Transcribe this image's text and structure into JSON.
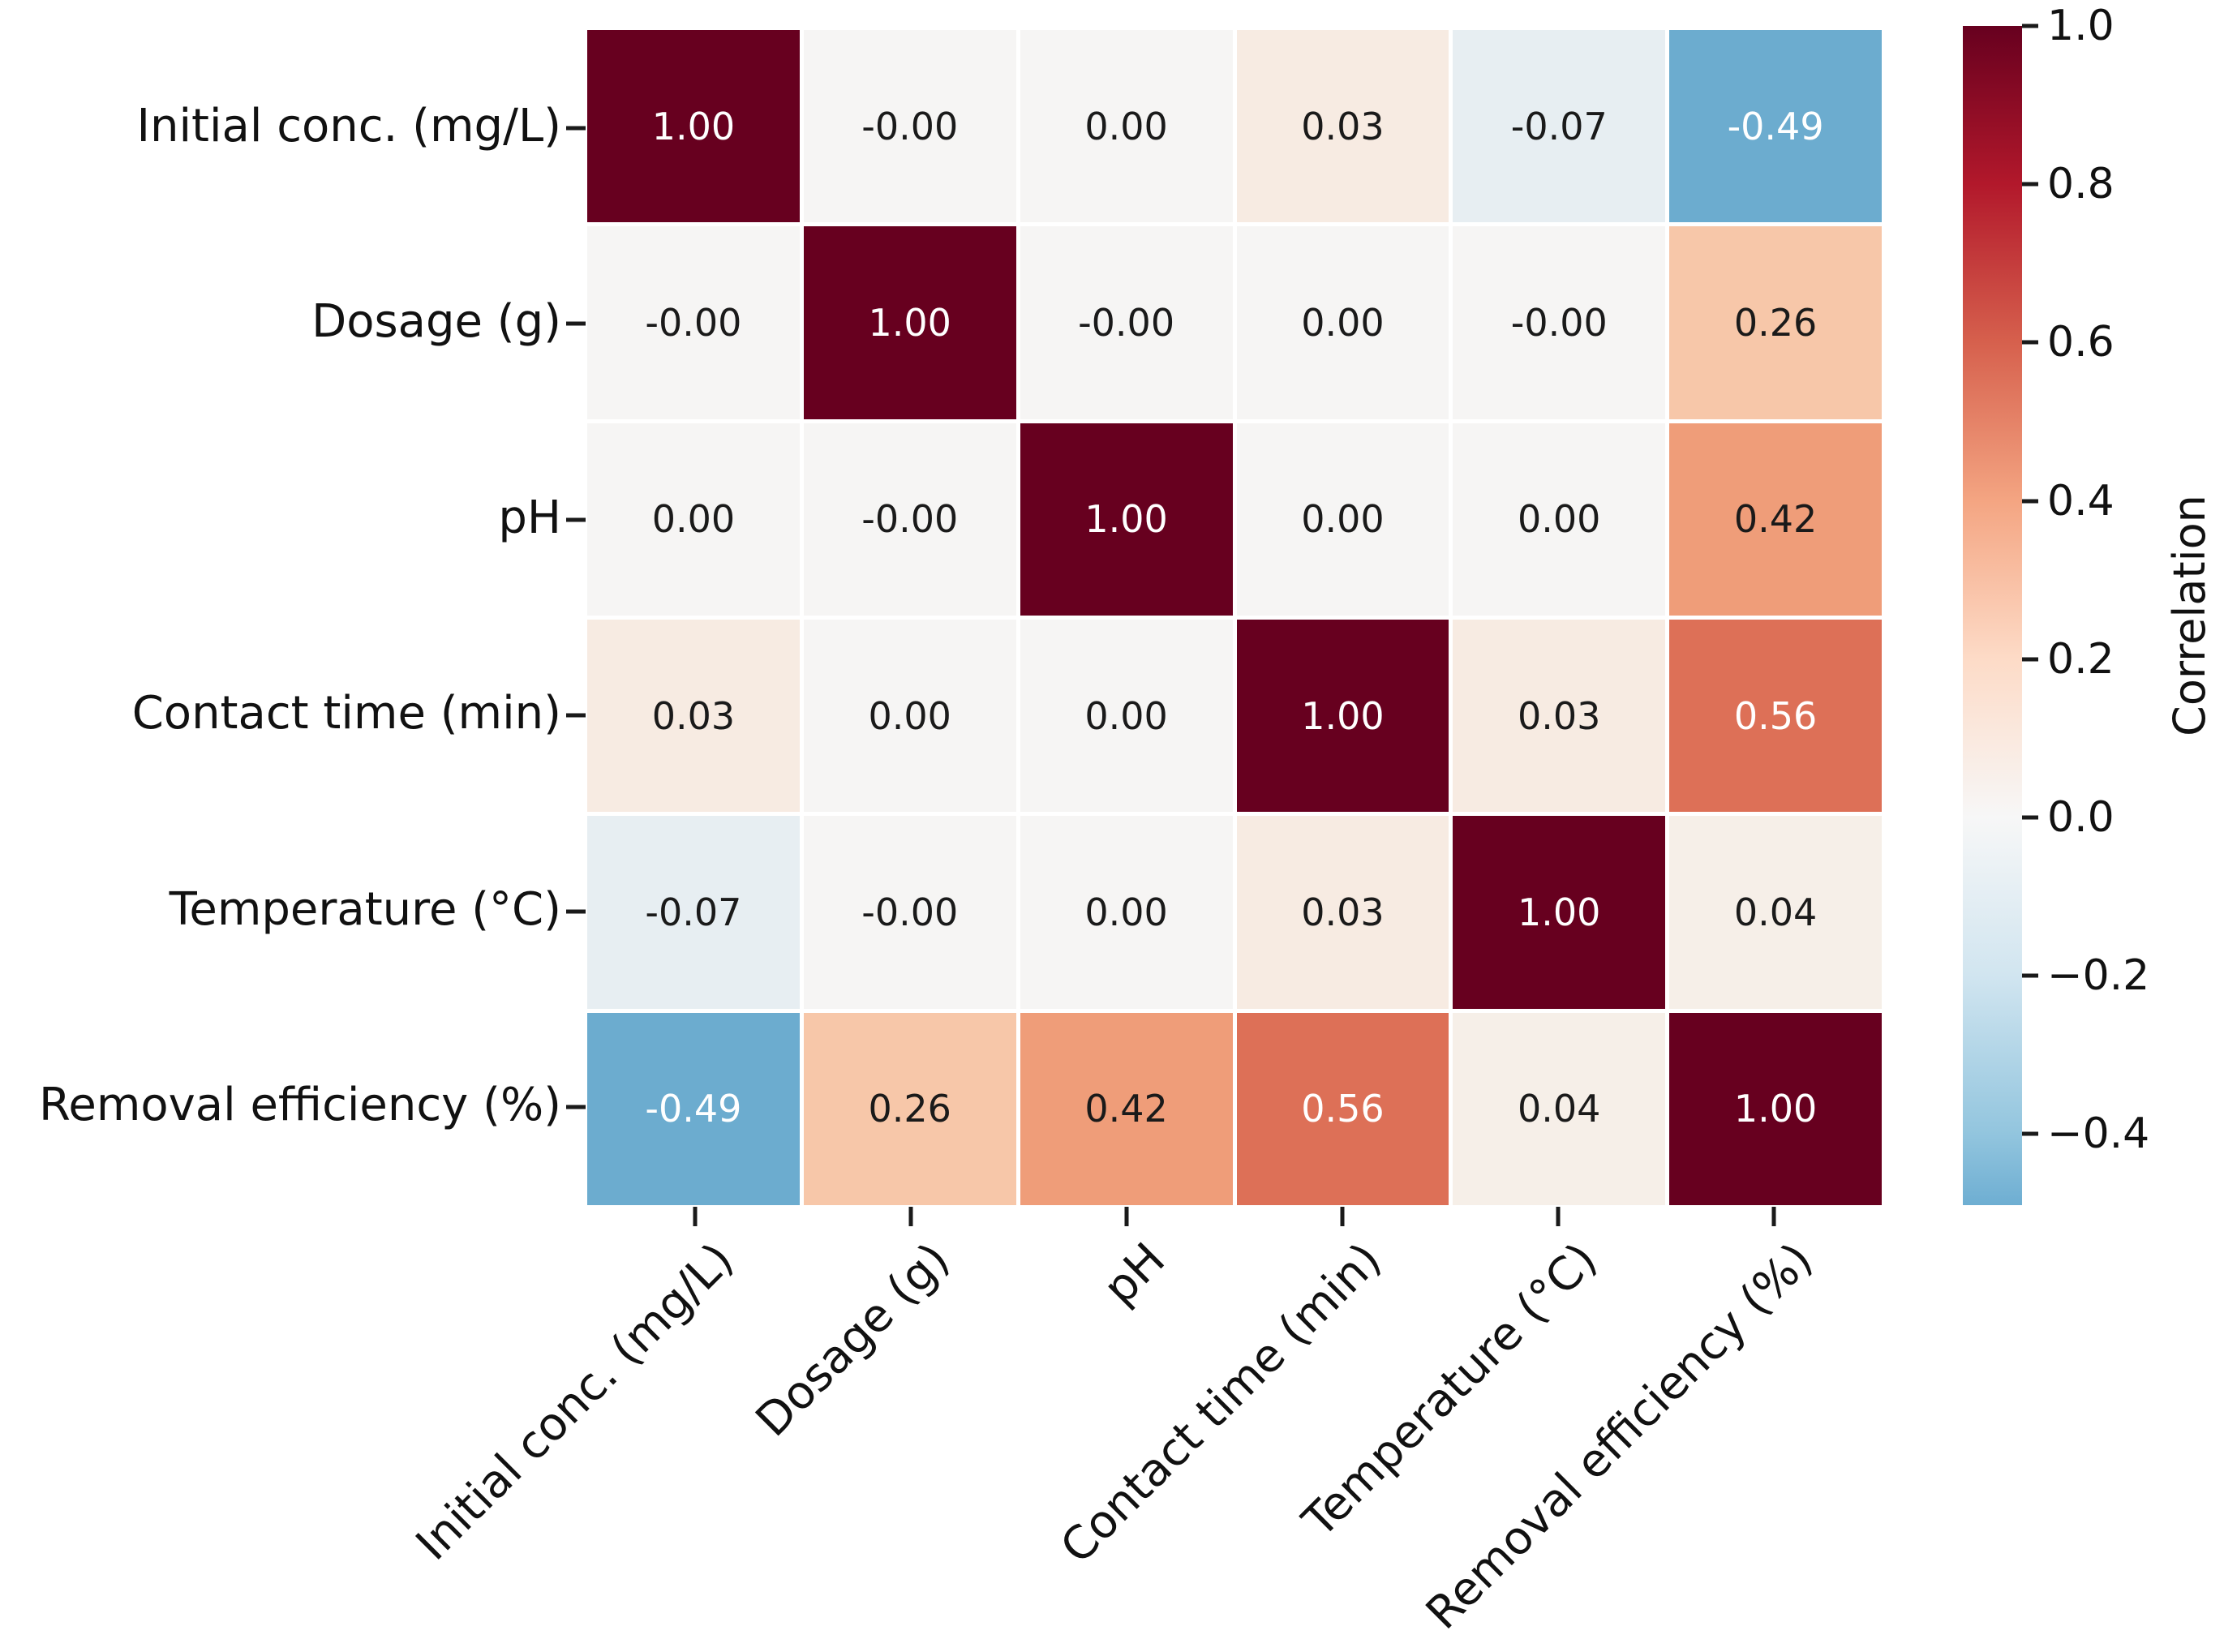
{
  "chart_data": {
    "type": "heatmap",
    "title": "",
    "variables": [
      "Initial conc. (mg/L)",
      "Dosage (g)",
      "pH",
      "Contact time (min)",
      "Temperature (°C)",
      "Removal efficiency (%)"
    ],
    "matrix": [
      [
        1.0,
        -0.0,
        0.0,
        0.03,
        -0.07,
        -0.49
      ],
      [
        -0.0,
        1.0,
        -0.0,
        0.0,
        -0.0,
        0.26
      ],
      [
        0.0,
        -0.0,
        1.0,
        0.0,
        0.0,
        0.42
      ],
      [
        0.03,
        0.0,
        0.0,
        1.0,
        0.03,
        0.56
      ],
      [
        -0.07,
        -0.0,
        0.0,
        0.03,
        1.0,
        0.04
      ],
      [
        -0.49,
        0.26,
        0.42,
        0.56,
        0.04,
        1.0
      ]
    ],
    "annot": [
      [
        "1.00",
        "-0.00",
        "0.00",
        "0.03",
        "-0.07",
        "-0.49"
      ],
      [
        "-0.00",
        "1.00",
        "-0.00",
        "0.00",
        "-0.00",
        "0.26"
      ],
      [
        "0.00",
        "-0.00",
        "1.00",
        "0.00",
        "0.00",
        "0.42"
      ],
      [
        "0.03",
        "0.00",
        "0.00",
        "1.00",
        "0.03",
        "0.56"
      ],
      [
        "-0.07",
        "-0.00",
        "0.00",
        "0.03",
        "1.00",
        "0.04"
      ],
      [
        "-0.49",
        "0.26",
        "0.42",
        "0.56",
        "0.04",
        "1.00"
      ]
    ],
    "grid": false,
    "legend_position": "right-colorbar",
    "colorbar": {
      "label": "Correlation",
      "ticks": [
        1.0,
        0.8,
        0.6,
        0.4,
        0.2,
        0.0,
        -0.2,
        -0.4
      ],
      "vmin": -0.49,
      "vmax": 1.0,
      "gradient": [
        {
          "pct": 0.0,
          "color": "#67001f"
        },
        {
          "pct": 13.4,
          "color": "#b2182b"
        },
        {
          "pct": 26.8,
          "color": "#d6604d"
        },
        {
          "pct": 40.3,
          "color": "#f4a582"
        },
        {
          "pct": 53.7,
          "color": "#fddbc7"
        },
        {
          "pct": 67.1,
          "color": "#f7f7f7"
        },
        {
          "pct": 80.5,
          "color": "#d1e5f0"
        },
        {
          "pct": 94.0,
          "color": "#92c5de"
        },
        {
          "pct": 100.0,
          "color": "#6eaed2"
        }
      ]
    },
    "cell_styles": {
      "1.00": {
        "bg": "#67001f",
        "fg": "#ffffff"
      },
      "0.56": {
        "bg": "#dd7057",
        "fg": "#ffffff"
      },
      "0.42": {
        "bg": "#ef9d79",
        "fg": "#1a1a1a"
      },
      "0.26": {
        "bg": "#f7c7a9",
        "fg": "#1a1a1a"
      },
      "0.04": {
        "bg": "#f6efe8",
        "fg": "#1a1a1a"
      },
      "0.03": {
        "bg": "#f7ebe2",
        "fg": "#1a1a1a"
      },
      "0.00": {
        "bg": "#f6f5f4",
        "fg": "#1a1a1a"
      },
      "-0.00": {
        "bg": "#f6f5f4",
        "fg": "#1a1a1a"
      },
      "-0.07": {
        "bg": "#e7eef2",
        "fg": "#1a1a1a"
      },
      "-0.49": {
        "bg": "#6caccf",
        "fg": "#ffffff"
      }
    }
  }
}
